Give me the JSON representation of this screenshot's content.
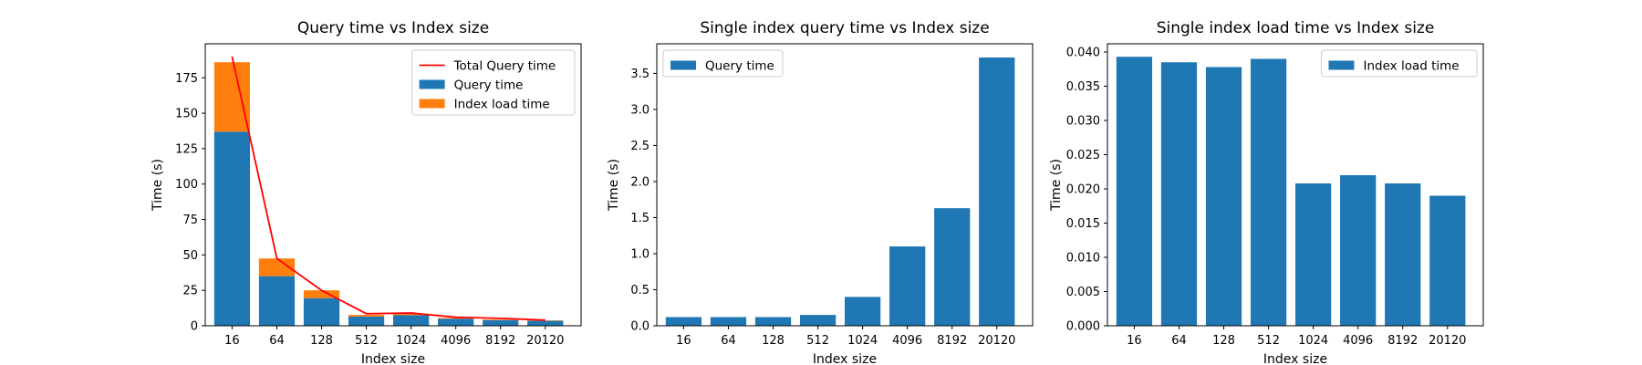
{
  "chart_data": [
    {
      "type": "bar",
      "stacked": true,
      "title": "Query time vs Index size",
      "xlabel": "Index size",
      "ylabel": "Time (s)",
      "categories": [
        "16",
        "64",
        "128",
        "512",
        "1024",
        "4096",
        "8192",
        "20120"
      ],
      "series": [
        {
          "name": "Query time",
          "kind": "bar",
          "color": "#1f77b4",
          "values": [
            137,
            35,
            19.5,
            6.5,
            7.5,
            5,
            4,
            3.5
          ]
        },
        {
          "name": "Index load time",
          "kind": "bar",
          "color": "#ff7f0e",
          "values": [
            49,
            12.5,
            5.5,
            1.2,
            1,
            0.5,
            0.4,
            0.3
          ]
        },
        {
          "name": "Total Query time",
          "kind": "line",
          "color": "#ff0000",
          "values": [
            190,
            47.5,
            25,
            8.5,
            9,
            6,
            5.2,
            4
          ]
        }
      ],
      "legend_order": [
        "Total Query time",
        "Query time",
        "Index load time"
      ],
      "yticks": [
        0,
        25,
        50,
        75,
        100,
        125,
        150,
        175
      ],
      "ytick_labels": [
        "0",
        "25",
        "50",
        "75",
        "100",
        "125",
        "150",
        "175"
      ],
      "ylim": [
        0,
        199
      ],
      "grid": false,
      "legend_position": "upper right"
    },
    {
      "type": "bar",
      "title": "Single index query time vs Index size",
      "xlabel": "Index size",
      "ylabel": "Time (s)",
      "categories": [
        "16",
        "64",
        "128",
        "512",
        "1024",
        "4096",
        "8192",
        "20120"
      ],
      "series": [
        {
          "name": "Query time",
          "kind": "bar",
          "color": "#1f77b4",
          "values": [
            0.12,
            0.12,
            0.12,
            0.15,
            0.4,
            1.1,
            1.63,
            3.72
          ]
        }
      ],
      "legend_order": [
        "Query time"
      ],
      "yticks": [
        0,
        0.5,
        1,
        1.5,
        2,
        2.5,
        3,
        3.5
      ],
      "ytick_labels": [
        "0.0",
        "0.5",
        "1.0",
        "1.5",
        "2.0",
        "2.5",
        "3.0",
        "3.5"
      ],
      "ylim": [
        0,
        3.91
      ],
      "grid": false,
      "legend_position": "upper left"
    },
    {
      "type": "bar",
      "title": "Single index load time vs Index size",
      "xlabel": "Index size",
      "ylabel": "Time (s)",
      "categories": [
        "16",
        "64",
        "128",
        "512",
        "1024",
        "4096",
        "8192",
        "20120"
      ],
      "series": [
        {
          "name": "Index load time",
          "kind": "bar",
          "color": "#1f77b4",
          "values": [
            0.0393,
            0.0385,
            0.0378,
            0.039,
            0.0208,
            0.022,
            0.0208,
            0.019
          ]
        }
      ],
      "legend_order": [
        "Index load time"
      ],
      "yticks": [
        0,
        0.005,
        0.01,
        0.015,
        0.02,
        0.025,
        0.03,
        0.035,
        0.04
      ],
      "ytick_labels": [
        "0.000",
        "0.005",
        "0.010",
        "0.015",
        "0.020",
        "0.025",
        "0.030",
        "0.035",
        "0.040"
      ],
      "ylim": [
        0,
        0.0412
      ],
      "grid": false,
      "legend_position": "upper right"
    }
  ]
}
